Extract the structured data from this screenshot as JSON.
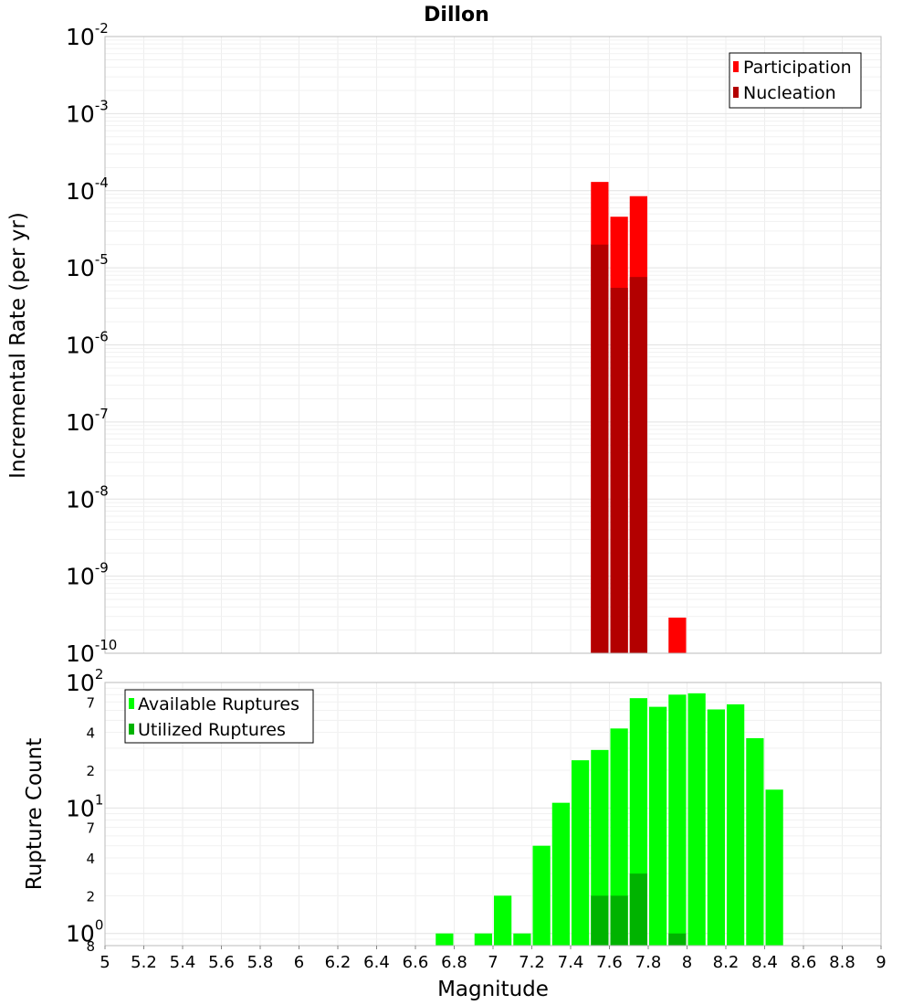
{
  "chart_data": [
    {
      "type": "bar",
      "title": "Dillon",
      "xlabel": "",
      "ylabel": "Incremental Rate (per yr)",
      "yscale": "log",
      "xlim": [
        5,
        9
      ],
      "ylim": [
        1e-10,
        0.01
      ],
      "grid": true,
      "legend_position": "top-right",
      "bin_width": 0.1,
      "y_ticks": [
        {
          "v": 0.01,
          "base": "10",
          "exp": "-2"
        },
        {
          "v": 0.001,
          "base": "10",
          "exp": "-3"
        },
        {
          "v": 0.0001,
          "base": "10",
          "exp": "-4"
        },
        {
          "v": 1e-05,
          "base": "10",
          "exp": "-5"
        },
        {
          "v": 1e-06,
          "base": "10",
          "exp": "-6"
        },
        {
          "v": 1e-07,
          "base": "10",
          "exp": "-7"
        },
        {
          "v": 1e-08,
          "base": "10",
          "exp": "-8"
        },
        {
          "v": 1e-09,
          "base": "10",
          "exp": "-9"
        },
        {
          "v": 1e-10,
          "base": "10",
          "exp": "-10"
        }
      ],
      "series": [
        {
          "name": "Participation",
          "color": "#ff0000",
          "points": [
            {
              "x": 7.55,
              "y": 0.00013
            },
            {
              "x": 7.65,
              "y": 4.6e-05
            },
            {
              "x": 7.75,
              "y": 8.5e-05
            },
            {
              "x": 7.95,
              "y": 2.9e-10
            }
          ]
        },
        {
          "name": "Nucleation",
          "color": "#b30000",
          "points": [
            {
              "x": 7.55,
              "y": 2e-05
            },
            {
              "x": 7.65,
              "y": 5.5e-06
            },
            {
              "x": 7.75,
              "y": 7.6e-06
            }
          ]
        }
      ]
    },
    {
      "type": "bar",
      "title": "",
      "xlabel": "Magnitude",
      "ylabel": "Rupture Count",
      "yscale": "log",
      "xlim": [
        5,
        9
      ],
      "ylim": [
        0.8,
        100
      ],
      "grid": true,
      "legend_position": "top-left",
      "bin_width": 0.1,
      "x_ticks": [
        "5",
        "5.2",
        "5.4",
        "5.6",
        "5.8",
        "6",
        "6.2",
        "6.4",
        "6.6",
        "6.8",
        "7",
        "7.2",
        "7.4",
        "7.6",
        "7.8",
        "8",
        "8.2",
        "8.4",
        "8.6",
        "8.8",
        "9"
      ],
      "y_ticks": [
        {
          "v": 100,
          "base": "10",
          "exp": "2"
        },
        {
          "v": 10,
          "base": "10",
          "exp": "1"
        },
        {
          "v": 1,
          "base": "10",
          "exp": "0"
        }
      ],
      "y_minor_labels": [
        {
          "v": 70,
          "label": "7"
        },
        {
          "v": 40,
          "label": "4"
        },
        {
          "v": 20,
          "label": "2"
        },
        {
          "v": 7,
          "label": "7"
        },
        {
          "v": 4,
          "label": "4"
        },
        {
          "v": 2,
          "label": "2"
        },
        {
          "v": 0.8,
          "label": "8"
        }
      ],
      "series": [
        {
          "name": "Available Ruptures",
          "color": "#00ff00",
          "points": [
            {
              "x": 6.75,
              "y": 1
            },
            {
              "x": 6.95,
              "y": 1
            },
            {
              "x": 7.05,
              "y": 2
            },
            {
              "x": 7.15,
              "y": 1
            },
            {
              "x": 7.25,
              "y": 5
            },
            {
              "x": 7.35,
              "y": 11
            },
            {
              "x": 7.45,
              "y": 24
            },
            {
              "x": 7.55,
              "y": 29
            },
            {
              "x": 7.65,
              "y": 43
            },
            {
              "x": 7.75,
              "y": 75
            },
            {
              "x": 7.85,
              "y": 64
            },
            {
              "x": 7.95,
              "y": 80
            },
            {
              "x": 8.05,
              "y": 82
            },
            {
              "x": 8.15,
              "y": 61
            },
            {
              "x": 8.25,
              "y": 67
            },
            {
              "x": 8.35,
              "y": 36
            },
            {
              "x": 8.45,
              "y": 14
            }
          ]
        },
        {
          "name": "Utilized Ruptures",
          "color": "#00b300",
          "points": [
            {
              "x": 7.55,
              "y": 2
            },
            {
              "x": 7.65,
              "y": 2
            },
            {
              "x": 7.75,
              "y": 3
            },
            {
              "x": 7.95,
              "y": 1
            }
          ]
        }
      ]
    }
  ]
}
